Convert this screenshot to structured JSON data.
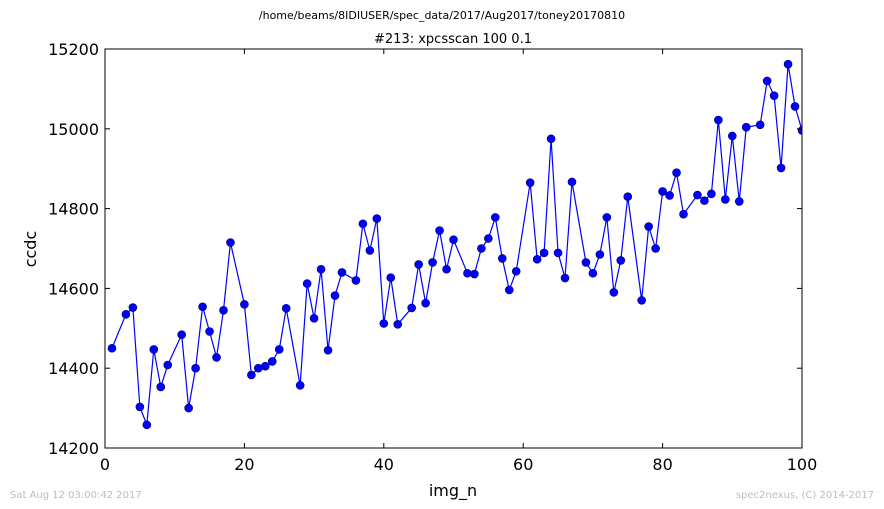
{
  "page": {
    "suptitle": "/home/beams/8IDIUSER/spec_data/2017/Aug2017/toney20170810",
    "footer_left": "Sat Aug 12 03:00:42 2017",
    "footer_right": "spec2nexus, (C) 2014-2017"
  },
  "chart_data": {
    "type": "line",
    "title": "#213: xpcsscan 100 0.1",
    "xlabel": "img_n",
    "ylabel": "ccdc",
    "xlim": [
      0,
      100
    ],
    "ylim": [
      14200,
      15200
    ],
    "x_ticks": [
      0,
      20,
      40,
      60,
      80,
      100
    ],
    "y_ticks": [
      14200,
      14400,
      14600,
      14800,
      15000,
      15200
    ],
    "marker": "circle",
    "grid": false,
    "legend": "none",
    "color": "#0000ff",
    "series": [
      {
        "x": [
          1,
          3,
          4,
          5,
          6,
          7,
          8,
          9,
          11,
          12,
          13,
          14,
          15,
          16,
          17,
          18,
          20,
          21,
          22,
          23,
          24,
          25,
          26,
          28,
          29,
          30,
          31,
          32,
          33,
          34,
          36,
          37,
          38,
          39,
          40,
          41,
          42,
          44,
          45,
          46,
          47,
          48,
          49,
          50,
          52,
          53,
          54,
          55,
          56,
          57,
          58,
          59,
          61,
          62,
          63,
          64,
          65,
          66,
          67,
          69,
          70,
          71,
          72,
          73,
          74,
          75,
          77,
          78,
          79,
          80,
          81,
          82,
          83,
          85,
          86,
          87,
          88,
          89,
          90,
          91,
          92,
          94,
          95,
          96,
          97,
          98,
          99,
          100
        ],
        "values": [
          14450,
          14535,
          14552,
          14303,
          14258,
          14447,
          14353,
          14408,
          14484,
          14300,
          14400,
          14554,
          14492,
          14427,
          14545,
          14715,
          14560,
          14383,
          14400,
          14405,
          14417,
          14447,
          14550,
          14357,
          14612,
          14525,
          14648,
          14445,
          14582,
          14640,
          14620,
          14762,
          14695,
          14775,
          14512,
          14627,
          14510,
          14551,
          14660,
          14563,
          14665,
          14745,
          14648,
          14722,
          14638,
          14636,
          14700,
          14725,
          14778,
          14675,
          14596,
          14643,
          14865,
          14673,
          14689,
          14975,
          14689,
          14626,
          14867,
          14665,
          14638,
          14685,
          14778,
          14590,
          14670,
          14830,
          14570,
          14755,
          14700,
          14843,
          14833,
          14890,
          14786,
          14834,
          14820,
          14837,
          15022,
          14823,
          14982,
          14818,
          15004,
          15010,
          15120,
          15083,
          14902,
          15162,
          15056,
          14996
        ]
      }
    ]
  }
}
